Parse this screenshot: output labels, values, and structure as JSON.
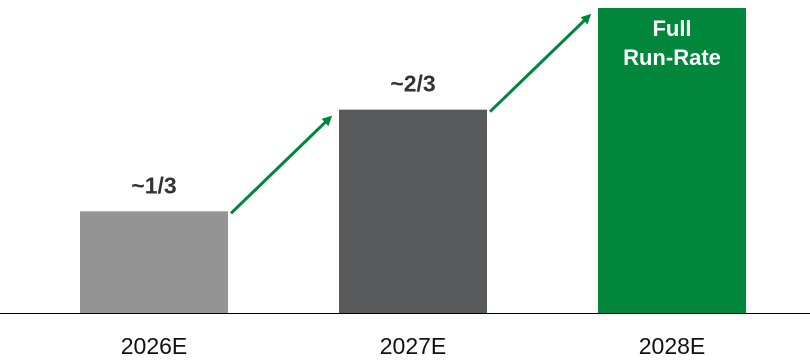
{
  "chart_data": {
    "type": "bar",
    "categories": [
      "2026E",
      "2027E",
      "2028E"
    ],
    "values": [
      0.3333,
      0.6667,
      1.0
    ],
    "data_labels": [
      [
        "~1/3"
      ],
      [
        "~2/3"
      ],
      [
        "Full",
        "Run-Rate"
      ]
    ],
    "data_label_position": [
      "above",
      "above",
      "inside"
    ],
    "colors": [
      "#949494",
      "#58595b",
      "#00873c"
    ],
    "arrow_color": "#00873c",
    "ylim": [
      0,
      1.0
    ],
    "grid": false,
    "legend": "none",
    "title": "",
    "xlabel": "",
    "ylabel": ""
  }
}
